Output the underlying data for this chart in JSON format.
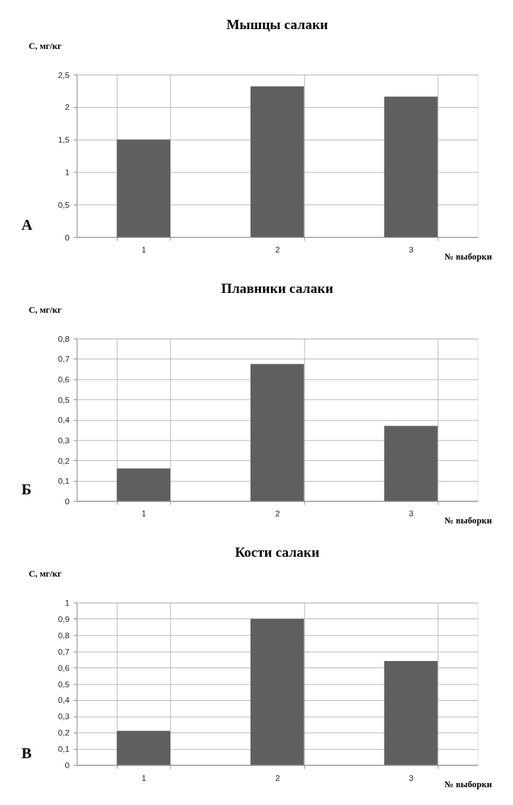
{
  "chart_data": [
    {
      "type": "bar",
      "title": "Мышцы салаки",
      "xlabel": "№ выборки",
      "ylabel": "С, мг/кг",
      "categories": [
        "1",
        "2",
        "3"
      ],
      "values": [
        1.5,
        2.32,
        2.16
      ],
      "color": "#5f5f5f",
      "ylim": [
        0,
        2.5
      ],
      "yticks": [
        0,
        {
          "value": 0.5,
          "label": "0,5"
        },
        1,
        {
          "value": 1.5,
          "label": "1,5"
        },
        2,
        {
          "value": 2.5,
          "label": "2,5"
        }
      ],
      "grid": true,
      "annotations": [
        "А"
      ]
    },
    {
      "type": "bar",
      "title": "Плавники салаки",
      "xlabel": "№ выборки",
      "ylabel": "С, мг/кг",
      "categories": [
        "1",
        "2",
        "3"
      ],
      "values": [
        0.16,
        0.675,
        0.37
      ],
      "color": "#5f5f5f",
      "ylim": [
        0,
        0.8
      ],
      "yticks": [
        0,
        {
          "value": 0.1,
          "label": "0,1"
        },
        {
          "value": 0.2,
          "label": "0,2"
        },
        {
          "value": 0.3,
          "label": "0,3"
        },
        {
          "value": 0.4,
          "label": "0,4"
        },
        {
          "value": 0.5,
          "label": "0,5"
        },
        {
          "value": 0.6,
          "label": "0,6"
        },
        {
          "value": 0.7,
          "label": "0,7"
        },
        {
          "value": 0.8,
          "label": "0,8"
        }
      ],
      "grid": true,
      "annotations": [
        "Б"
      ]
    },
    {
      "type": "bar",
      "title": "Кости салаки",
      "xlabel": "№ выборки",
      "ylabel": "С, мг/кг",
      "categories": [
        "1",
        "2",
        "3"
      ],
      "values": [
        0.21,
        0.9,
        0.64
      ],
      "color": "#5f5f5f",
      "ylim": [
        0,
        1
      ],
      "yticks": [
        0,
        {
          "value": 0.1,
          "label": "0,1"
        },
        {
          "value": 0.2,
          "label": "0,2"
        },
        {
          "value": 0.3,
          "label": "0,3"
        },
        {
          "value": 0.4,
          "label": "0,4"
        },
        {
          "value": 0.5,
          "label": "0,5"
        },
        {
          "value": 0.6,
          "label": "0,6"
        },
        {
          "value": 0.7,
          "label": "0,7"
        },
        {
          "value": 0.8,
          "label": "0,8"
        },
        {
          "value": 0.9,
          "label": "0,9"
        },
        1
      ],
      "grid": true,
      "annotations": [
        "В"
      ]
    }
  ]
}
